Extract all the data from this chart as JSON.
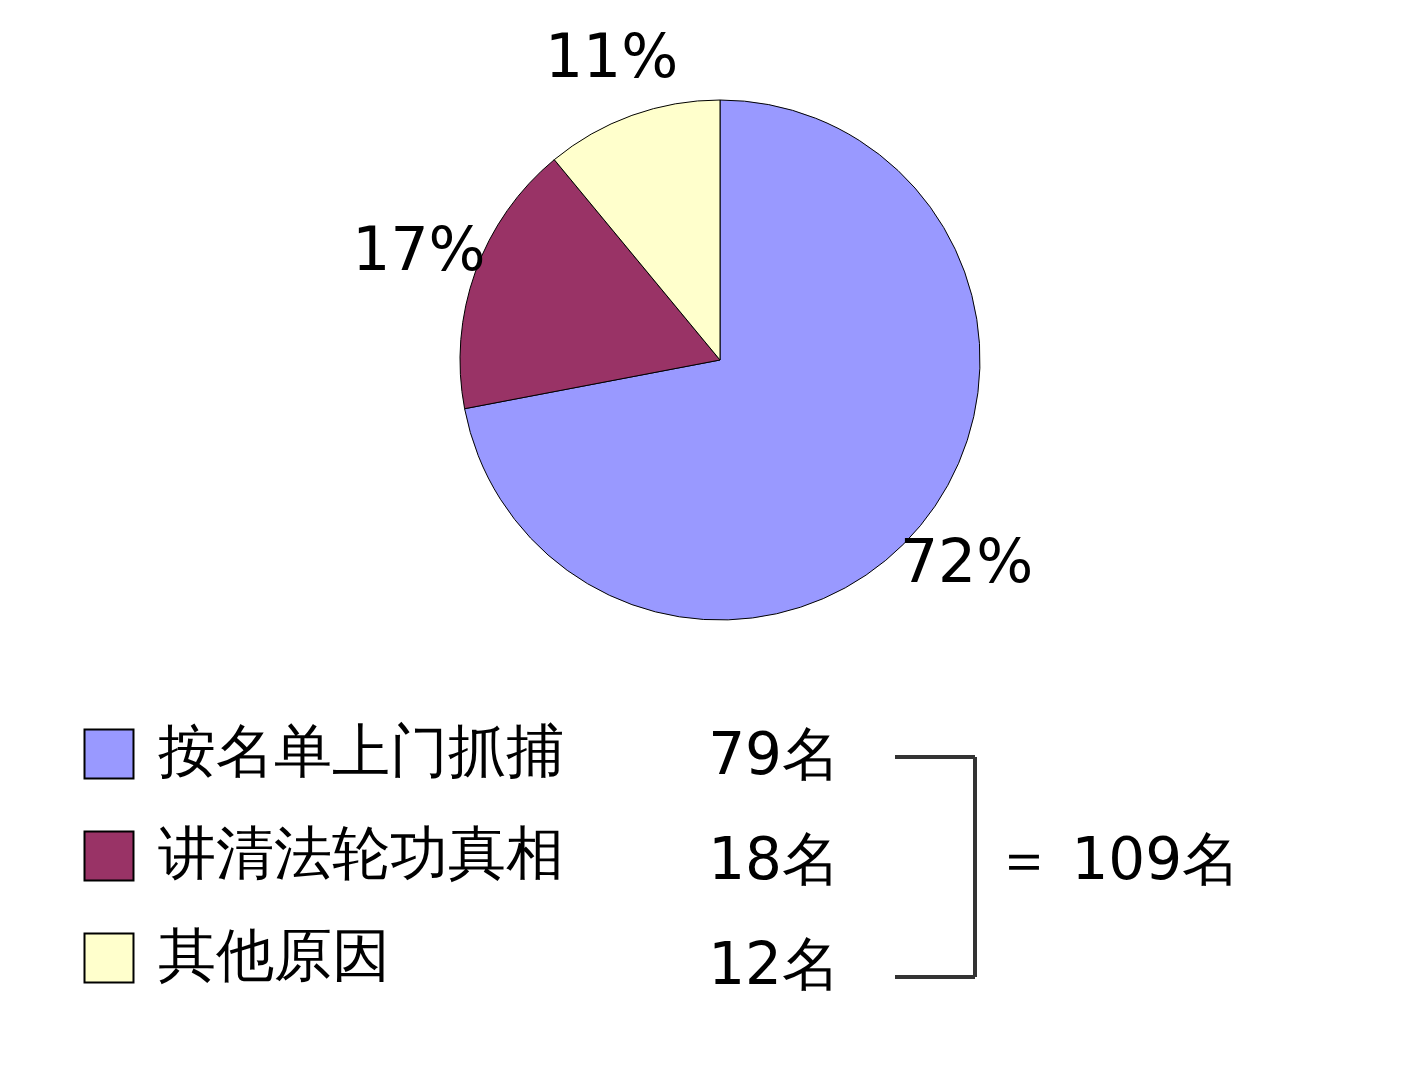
{
  "chart_data": {
    "type": "pie",
    "categories": [
      "按名单上门抓捕",
      "讲清法轮功真相",
      "其他原因"
    ],
    "values": [
      72,
      17,
      11
    ],
    "colors": [
      "#9999ff",
      "#993366",
      "#ffffcc"
    ],
    "value_labels": [
      "72%",
      "17%",
      "11%"
    ],
    "legend": "bottom left",
    "annotations": [
      "79名",
      "18名",
      "12名",
      "＝ 109名"
    ]
  }
}
